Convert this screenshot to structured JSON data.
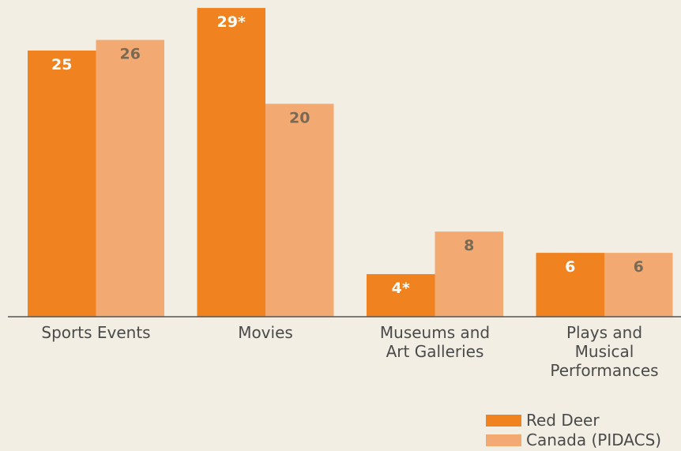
{
  "chart_data": {
    "type": "bar",
    "categories": [
      "Sports Events",
      "Movies",
      "Museums and\nArt Galleries",
      "Plays and\nMusical\nPerformances"
    ],
    "series": [
      {
        "name": "Red Deer",
        "color": "#f0821f",
        "label_color": "#ffffff",
        "values": [
          25,
          29,
          4,
          6
        ],
        "value_labels": [
          "25",
          "29*",
          "4*",
          "6"
        ]
      },
      {
        "name": "Canada (PIDACS)",
        "color": "#f2aa72",
        "label_color": "#7a6a55",
        "values": [
          26,
          20,
          8,
          6
        ]
      }
    ],
    "ylim": [
      0,
      30
    ],
    "legend": "bottom-right"
  }
}
